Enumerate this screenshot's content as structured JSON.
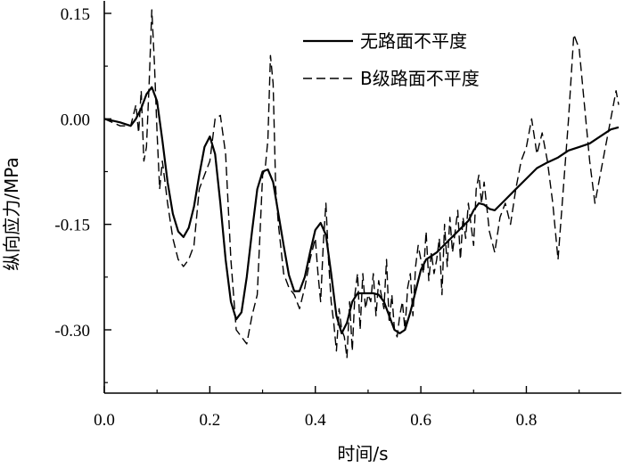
{
  "chart_data": {
    "type": "line",
    "xlabel": "时间/s",
    "ylabel": "纵向应力/MPa",
    "xlim": [
      0,
      0.98
    ],
    "ylim": [
      -0.39,
      0.15
    ],
    "xticks": [
      0.0,
      0.2,
      0.4,
      0.6,
      0.8
    ],
    "xtick_labels": [
      "0.0",
      "0.2",
      "0.4",
      "0.6",
      "0.8"
    ],
    "yticks": [
      0.15,
      0.0,
      -0.15,
      -0.3
    ],
    "ytick_labels": [
      "0.15",
      "0.00",
      "-0.15",
      "-0.30"
    ],
    "grid": false,
    "legend_position": "top-right",
    "series": [
      {
        "name": "无路面不平度",
        "style": "solid",
        "color": "#000000",
        "x": [
          0.0,
          0.03,
          0.05,
          0.06,
          0.07,
          0.08,
          0.09,
          0.1,
          0.11,
          0.12,
          0.13,
          0.14,
          0.15,
          0.16,
          0.17,
          0.18,
          0.19,
          0.2,
          0.21,
          0.22,
          0.23,
          0.24,
          0.25,
          0.26,
          0.27,
          0.28,
          0.29,
          0.3,
          0.31,
          0.32,
          0.33,
          0.34,
          0.35,
          0.36,
          0.37,
          0.38,
          0.39,
          0.4,
          0.41,
          0.42,
          0.43,
          0.44,
          0.45,
          0.46,
          0.47,
          0.48,
          0.49,
          0.5,
          0.51,
          0.52,
          0.53,
          0.54,
          0.55,
          0.56,
          0.57,
          0.58,
          0.59,
          0.6,
          0.61,
          0.62,
          0.63,
          0.65,
          0.67,
          0.69,
          0.7,
          0.71,
          0.72,
          0.73,
          0.74,
          0.76,
          0.78,
          0.8,
          0.82,
          0.84,
          0.86,
          0.88,
          0.9,
          0.92,
          0.94,
          0.96,
          0.975
        ],
        "y": [
          0.0,
          -0.005,
          -0.01,
          0.0,
          0.015,
          0.035,
          0.045,
          0.025,
          -0.03,
          -0.09,
          -0.135,
          -0.16,
          -0.168,
          -0.155,
          -0.125,
          -0.08,
          -0.04,
          -0.025,
          -0.05,
          -0.12,
          -0.2,
          -0.26,
          -0.285,
          -0.275,
          -0.225,
          -0.16,
          -0.1,
          -0.075,
          -0.072,
          -0.09,
          -0.135,
          -0.18,
          -0.222,
          -0.245,
          -0.245,
          -0.225,
          -0.19,
          -0.158,
          -0.148,
          -0.165,
          -0.22,
          -0.28,
          -0.305,
          -0.29,
          -0.26,
          -0.248,
          -0.248,
          -0.248,
          -0.248,
          -0.25,
          -0.26,
          -0.28,
          -0.3,
          -0.305,
          -0.3,
          -0.275,
          -0.245,
          -0.215,
          -0.2,
          -0.195,
          -0.19,
          -0.175,
          -0.16,
          -0.145,
          -0.13,
          -0.12,
          -0.122,
          -0.128,
          -0.13,
          -0.115,
          -0.1,
          -0.085,
          -0.07,
          -0.062,
          -0.055,
          -0.045,
          -0.04,
          -0.035,
          -0.025,
          -0.015,
          -0.012
        ]
      },
      {
        "name": "B级路面不平度",
        "style": "dashed",
        "color": "#000000",
        "x": [
          0.0,
          0.03,
          0.05,
          0.06,
          0.065,
          0.07,
          0.075,
          0.08,
          0.085,
          0.09,
          0.095,
          0.1,
          0.105,
          0.11,
          0.115,
          0.12,
          0.13,
          0.14,
          0.15,
          0.16,
          0.17,
          0.18,
          0.19,
          0.2,
          0.21,
          0.22,
          0.23,
          0.24,
          0.25,
          0.26,
          0.27,
          0.28,
          0.29,
          0.3,
          0.305,
          0.31,
          0.315,
          0.32,
          0.325,
          0.33,
          0.34,
          0.35,
          0.36,
          0.37,
          0.38,
          0.39,
          0.4,
          0.405,
          0.41,
          0.415,
          0.42,
          0.425,
          0.43,
          0.435,
          0.44,
          0.445,
          0.45,
          0.455,
          0.46,
          0.465,
          0.47,
          0.475,
          0.48,
          0.485,
          0.49,
          0.495,
          0.5,
          0.505,
          0.51,
          0.515,
          0.52,
          0.525,
          0.53,
          0.535,
          0.54,
          0.545,
          0.55,
          0.555,
          0.56,
          0.565,
          0.57,
          0.575,
          0.58,
          0.585,
          0.59,
          0.595,
          0.6,
          0.605,
          0.61,
          0.615,
          0.62,
          0.625,
          0.63,
          0.635,
          0.64,
          0.645,
          0.65,
          0.655,
          0.66,
          0.665,
          0.67,
          0.675,
          0.68,
          0.685,
          0.69,
          0.695,
          0.7,
          0.705,
          0.71,
          0.715,
          0.72,
          0.73,
          0.74,
          0.75,
          0.76,
          0.77,
          0.78,
          0.79,
          0.8,
          0.81,
          0.82,
          0.83,
          0.84,
          0.85,
          0.86,
          0.87,
          0.88,
          0.89,
          0.9,
          0.91,
          0.92,
          0.93,
          0.94,
          0.95,
          0.96,
          0.97,
          0.975
        ],
        "y": [
          0.0,
          -0.01,
          -0.01,
          0.02,
          -0.02,
          0.04,
          -0.06,
          -0.04,
          0.05,
          0.155,
          0.08,
          -0.02,
          -0.1,
          -0.06,
          -0.09,
          -0.12,
          -0.17,
          -0.2,
          -0.21,
          -0.2,
          -0.18,
          -0.1,
          -0.08,
          -0.06,
          0.0,
          0.005,
          -0.05,
          -0.2,
          -0.3,
          -0.31,
          -0.32,
          -0.28,
          -0.25,
          -0.08,
          -0.07,
          -0.03,
          0.09,
          0.05,
          -0.1,
          -0.15,
          -0.22,
          -0.24,
          -0.25,
          -0.27,
          -0.24,
          -0.2,
          -0.17,
          -0.22,
          -0.26,
          -0.18,
          -0.12,
          -0.2,
          -0.26,
          -0.29,
          -0.33,
          -0.27,
          -0.3,
          -0.31,
          -0.34,
          -0.26,
          -0.33,
          -0.25,
          -0.22,
          -0.3,
          -0.22,
          -0.27,
          -0.25,
          -0.26,
          -0.22,
          -0.28,
          -0.23,
          -0.25,
          -0.27,
          -0.2,
          -0.29,
          -0.25,
          -0.3,
          -0.31,
          -0.28,
          -0.26,
          -0.3,
          -0.24,
          -0.22,
          -0.28,
          -0.21,
          -0.18,
          -0.2,
          -0.22,
          -0.16,
          -0.23,
          -0.19,
          -0.22,
          -0.2,
          -0.17,
          -0.25,
          -0.15,
          -0.21,
          -0.14,
          -0.19,
          -0.16,
          -0.13,
          -0.2,
          -0.14,
          -0.17,
          -0.12,
          -0.15,
          -0.18,
          -0.1,
          -0.08,
          -0.12,
          -0.09,
          -0.16,
          -0.19,
          -0.14,
          -0.12,
          -0.15,
          -0.1,
          -0.06,
          -0.04,
          0.0,
          -0.05,
          -0.02,
          -0.06,
          -0.12,
          -0.2,
          -0.1,
          0.0,
          0.12,
          0.1,
          0.02,
          -0.06,
          -0.12,
          -0.08,
          -0.04,
          0.0,
          0.04,
          0.02
        ]
      }
    ]
  }
}
